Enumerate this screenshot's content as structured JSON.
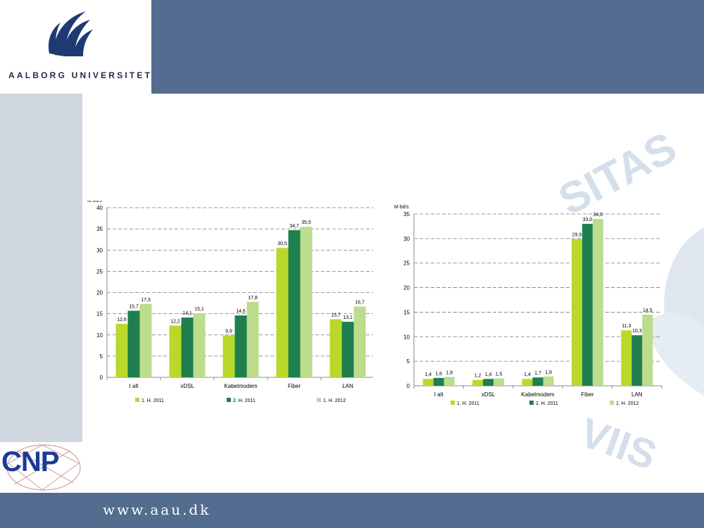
{
  "header": {
    "logo_text": "AALBORG UNIVERSITET"
  },
  "footer": {
    "url": "www.aau.dk"
  },
  "cnp": {
    "label": "CNP"
  },
  "watermark": {
    "top": "SITAS",
    "bottom": "VIIS"
  },
  "colors": {
    "header": "#536c90",
    "series1": "#b9d92a",
    "series2": "#1f7f4f",
    "series3": "#bcdc8e"
  },
  "chart_data": [
    {
      "type": "bar",
      "ylabel": "M bit/s",
      "ylim": [
        0,
        40
      ],
      "yticks": [
        0,
        5,
        10,
        15,
        20,
        25,
        30,
        35,
        40
      ],
      "categories": [
        "I alt",
        "xDSL",
        "Kabelmodem",
        "Fiber",
        "LAN"
      ],
      "series": [
        {
          "name": "1. H. 2011",
          "values": [
            12.6,
            12.2,
            9.9,
            30.5,
            13.7
          ],
          "labels": [
            "12,6",
            "12,2",
            "9,9",
            "30,5",
            "13,7"
          ]
        },
        {
          "name": "2. H. 2011",
          "values": [
            15.7,
            14.1,
            14.6,
            34.7,
            13.1
          ],
          "labels": [
            "15,7",
            "14,1",
            "14,6",
            "34,7",
            "13,1"
          ]
        },
        {
          "name": "1. H. 2012",
          "values": [
            17.3,
            15.1,
            17.8,
            35.5,
            16.7
          ],
          "labels": [
            "17,3",
            "15,1",
            "17,8",
            "35,5",
            "16,7"
          ]
        }
      ],
      "legend": "bottom",
      "grid": true
    },
    {
      "type": "bar",
      "ylabel": "M bit/s",
      "ylim": [
        0,
        35
      ],
      "yticks": [
        0,
        5,
        10,
        15,
        20,
        25,
        30,
        35
      ],
      "categories": [
        "I alt",
        "xDSL",
        "Kabelmodem",
        "Fiber",
        "LAN"
      ],
      "series": [
        {
          "name": "1. H. 2011",
          "values": [
            1.4,
            1.2,
            1.4,
            29.9,
            11.3
          ],
          "labels": [
            "1,4",
            "1,2",
            "1,4",
            "29,9",
            "11,3"
          ]
        },
        {
          "name": "2. H. 2011",
          "values": [
            1.6,
            1.4,
            1.7,
            33.0,
            10.3
          ],
          "labels": [
            "1,6",
            "1,4",
            "1,7",
            "33,0",
            "10,3"
          ]
        },
        {
          "name": "1. H. 2012",
          "values": [
            1.8,
            1.5,
            1.9,
            34.0,
            14.5
          ],
          "labels": [
            "1,8",
            "1,5",
            "1,9",
            "34,0",
            "14,5"
          ]
        }
      ],
      "legend": "bottom",
      "grid": true
    }
  ]
}
